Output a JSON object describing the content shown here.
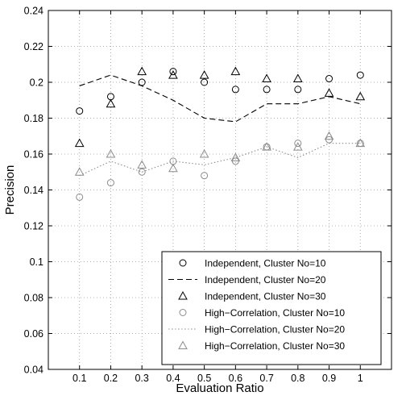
{
  "chart_data": {
    "type": "scatter",
    "xlabel": "Evaluation Ratio",
    "ylabel": "Precision",
    "xlim": [
      0,
      1.1
    ],
    "ylim": [
      0.04,
      0.24
    ],
    "x_ticks": [
      "0.1",
      "0.2",
      "0.3",
      "0.4",
      "0.5",
      "0.6",
      "0.7",
      "0.8",
      "0.9",
      "1"
    ],
    "x_tick_values": [
      0.1,
      0.2,
      0.3,
      0.4,
      0.5,
      0.6,
      0.7,
      0.8,
      0.9,
      1.0
    ],
    "y_ticks": [
      "0.04",
      "0.06",
      "0.08",
      "0.1",
      "0.12",
      "0.14",
      "0.16",
      "0.18",
      "0.2",
      "0.22",
      "0.24"
    ],
    "y_tick_values": [
      0.04,
      0.06,
      0.08,
      0.1,
      0.12,
      0.14,
      0.16,
      0.18,
      0.2,
      0.22,
      0.24
    ],
    "grid": true,
    "legend_position": "bottom-right",
    "x": [
      0.1,
      0.2,
      0.3,
      0.4,
      0.5,
      0.6,
      0.7,
      0.8,
      0.9,
      1.0
    ],
    "series": [
      {
        "name": "Independent, Cluster No=10",
        "marker": "circle",
        "line": "none",
        "color": "#000000",
        "values": [
          0.184,
          0.192,
          0.2,
          0.206,
          0.2,
          0.196,
          0.196,
          0.196,
          0.202,
          0.204
        ]
      },
      {
        "name": "Independent, Cluster No=20",
        "marker": "none",
        "line": "dashed",
        "color": "#000000",
        "values": [
          0.198,
          0.204,
          0.198,
          0.19,
          0.18,
          0.178,
          0.188,
          0.188,
          0.192,
          0.188
        ]
      },
      {
        "name": "Independent, Cluster No=30",
        "marker": "triangle",
        "line": "none",
        "color": "#000000",
        "values": [
          0.166,
          0.188,
          0.206,
          0.204,
          0.204,
          0.206,
          0.202,
          0.202,
          0.194,
          0.192
        ]
      },
      {
        "name": "High−Correlation, Cluster No=10",
        "marker": "circle",
        "line": "none",
        "color": "#8c8c8c",
        "values": [
          0.136,
          0.144,
          0.15,
          0.156,
          0.148,
          0.156,
          0.164,
          0.166,
          0.168,
          0.166
        ]
      },
      {
        "name": "High−Correlation, Cluster No=20",
        "marker": "none",
        "line": "dotted",
        "color": "#8c8c8c",
        "values": [
          0.148,
          0.156,
          0.15,
          0.156,
          0.154,
          0.158,
          0.164,
          0.158,
          0.166,
          0.166
        ]
      },
      {
        "name": "High−Correlation, Cluster No=30",
        "marker": "triangle",
        "line": "none",
        "color": "#8c8c8c",
        "values": [
          0.15,
          0.16,
          0.154,
          0.152,
          0.16,
          0.158,
          0.164,
          0.164,
          0.17,
          0.166
        ]
      }
    ]
  }
}
